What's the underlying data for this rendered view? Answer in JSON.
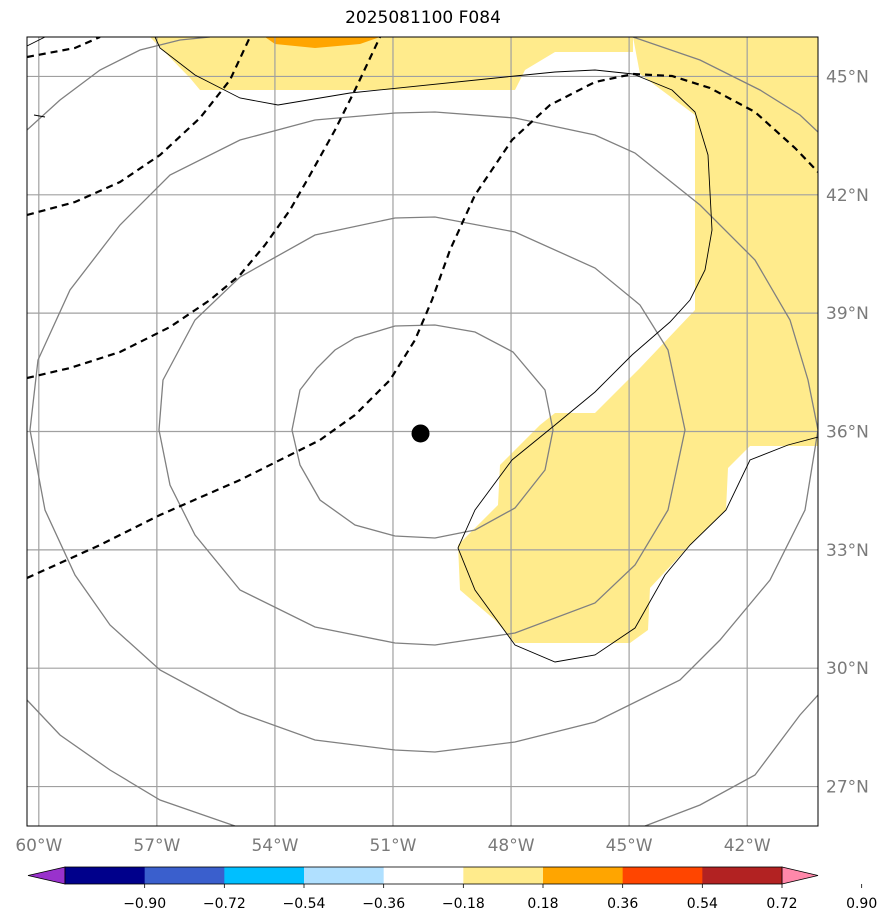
{
  "title": "2025081100 F084",
  "map": {
    "lon_range": [
      -60.3,
      -40.2
    ],
    "lat_range": [
      26,
      46
    ],
    "lon_ticks": [
      {
        "value": -60,
        "label": "60°W"
      },
      {
        "value": -57,
        "label": "57°W"
      },
      {
        "value": -54,
        "label": "54°W"
      },
      {
        "value": -51,
        "label": "51°W"
      },
      {
        "value": -48,
        "label": "48°W"
      },
      {
        "value": -45,
        "label": "45°W"
      },
      {
        "value": -42,
        "label": "42°W"
      }
    ],
    "lat_ticks": [
      {
        "value": 27,
        "label": "27°N"
      },
      {
        "value": 30,
        "label": "30°N"
      },
      {
        "value": 33,
        "label": "33°N"
      },
      {
        "value": 36,
        "label": "36°N"
      },
      {
        "value": 39,
        "label": "39°N"
      },
      {
        "value": 42,
        "label": "42°N"
      },
      {
        "value": 45,
        "label": "45°N"
      }
    ],
    "center_marker": {
      "lon": -50.3,
      "lat": 35.95
    },
    "grid": true
  },
  "colorbar": {
    "labels": [
      "−0.90",
      "−0.72",
      "−0.54",
      "−0.36",
      "−0.18",
      "0.18",
      "0.36",
      "0.54",
      "0.72",
      "0.90"
    ],
    "colors": [
      "#9932cc",
      "#00008b",
      "#3a5fcd",
      "#00bfff",
      "#b0e0ff",
      "#ffffff",
      "#ffeb8c",
      "#ffa500",
      "#ff4500",
      "#b22222",
      "#ff88aa"
    ],
    "extend": "both"
  },
  "colors": {
    "fill_positive_low": "#ffeb8c",
    "fill_positive_mid": "#ffa500",
    "grid": "#a0a0a0",
    "contour_solid": "#808080",
    "contour_dashed": "#000000"
  }
}
